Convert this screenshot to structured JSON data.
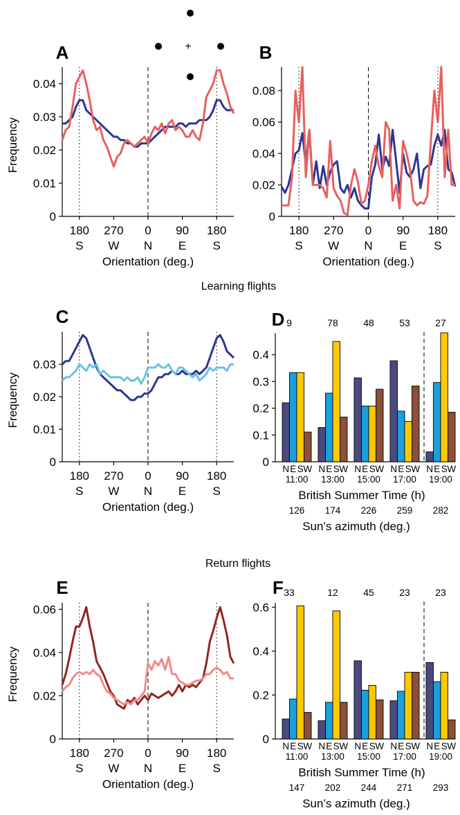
{
  "section_titles": {
    "learning": "Learning flights",
    "return": "Return flights"
  },
  "colors": {
    "navy": "#2B3595",
    "salmon": "#E8605C",
    "light_blue": "#6BC3DE",
    "dark_red": "#92251F",
    "pink": "#F08A8A",
    "bar_N": "#4A4A80",
    "bar_E": "#1AA0DC",
    "bar_S": "#FFC800",
    "bar_W": "#8B5038"
  },
  "orientation_axis": {
    "xlabel": "Orientation (deg.)",
    "ticks": [
      {
        "value": 180,
        "deg": "180",
        "dir": "S"
      },
      {
        "value": 270,
        "deg": "270",
        "dir": "W"
      },
      {
        "value": 360,
        "deg": "0",
        "dir": "N"
      },
      {
        "value": 450,
        "deg": "90",
        "dir": "E"
      },
      {
        "value": 540,
        "deg": "180",
        "dir": "S"
      }
    ]
  },
  "stimulus_icon": {
    "center_mark": "+"
  },
  "chart_data": [
    {
      "panel": "A",
      "type": "line",
      "ylabel": "Frequency",
      "xlim": [
        135,
        585
      ],
      "ylim": [
        0,
        0.045
      ],
      "yticks": [
        0,
        0.01,
        0.02,
        0.03,
        0.04
      ],
      "ytick_labels": [
        "0",
        "0.01",
        "0.02",
        "0.03",
        "0.04"
      ],
      "vlines": {
        "dotted": [
          180,
          540
        ],
        "dashed": [
          360
        ]
      },
      "x": [
        135,
        144,
        153,
        162,
        171,
        180,
        189,
        198,
        207,
        216,
        225,
        234,
        243,
        252,
        261,
        270,
        279,
        288,
        297,
        306,
        315,
        324,
        333,
        342,
        351,
        360,
        369,
        378,
        387,
        396,
        405,
        414,
        423,
        432,
        441,
        450,
        459,
        468,
        477,
        486,
        495,
        504,
        513,
        522,
        531,
        540,
        549,
        558,
        567,
        576,
        585
      ],
      "series": [
        {
          "color": "#2B3595",
          "values": [
            0.028,
            0.028,
            0.029,
            0.03,
            0.033,
            0.035,
            0.035,
            0.032,
            0.031,
            0.03,
            0.029,
            0.028,
            0.027,
            0.026,
            0.025,
            0.024,
            0.024,
            0.023,
            0.023,
            0.022,
            0.022,
            0.021,
            0.021,
            0.022,
            0.022,
            0.022,
            0.023,
            0.024,
            0.025,
            0.026,
            0.027,
            0.027,
            0.027,
            0.027,
            0.028,
            0.028,
            0.027,
            0.028,
            0.028,
            0.028,
            0.029,
            0.029,
            0.029,
            0.03,
            0.032,
            0.035,
            0.035,
            0.033,
            0.032,
            0.032,
            0.032
          ]
        },
        {
          "color": "#E8605C",
          "values": [
            0.023,
            0.026,
            0.027,
            0.033,
            0.04,
            0.042,
            0.044,
            0.04,
            0.035,
            0.029,
            0.026,
            0.027,
            0.023,
            0.021,
            0.018,
            0.015,
            0.018,
            0.019,
            0.022,
            0.023,
            0.022,
            0.021,
            0.022,
            0.023,
            0.024,
            0.022,
            0.025,
            0.027,
            0.026,
            0.028,
            0.025,
            0.028,
            0.029,
            0.026,
            0.027,
            0.026,
            0.024,
            0.024,
            0.026,
            0.024,
            0.023,
            0.028,
            0.036,
            0.038,
            0.04,
            0.044,
            0.044,
            0.04,
            0.037,
            0.033,
            0.031
          ]
        }
      ]
    },
    {
      "panel": "B",
      "type": "line",
      "ylabel": "",
      "xlim": [
        135,
        585
      ],
      "ylim": [
        0,
        0.095
      ],
      "yticks": [
        0,
        0.02,
        0.04,
        0.06,
        0.08
      ],
      "ytick_labels": [
        "0",
        "0.02",
        "0.04",
        "0.06",
        "0.08"
      ],
      "vlines": {
        "dotted": [
          180,
          540
        ],
        "dashed": [
          360
        ]
      },
      "x": [
        135,
        144,
        153,
        162,
        171,
        180,
        189,
        198,
        207,
        216,
        225,
        234,
        243,
        252,
        261,
        270,
        279,
        288,
        297,
        306,
        315,
        324,
        333,
        342,
        351,
        360,
        369,
        378,
        387,
        396,
        405,
        414,
        423,
        432,
        441,
        450,
        459,
        468,
        477,
        486,
        495,
        504,
        513,
        522,
        531,
        540,
        549,
        558,
        567,
        576,
        585
      ],
      "series": [
        {
          "color": "#2B3595",
          "values": [
            0.019,
            0.015,
            0.02,
            0.03,
            0.04,
            0.042,
            0.053,
            0.033,
            0.055,
            0.02,
            0.035,
            0.018,
            0.032,
            0.02,
            0.028,
            0.033,
            0.035,
            0.018,
            0.015,
            0.02,
            0.012,
            0.018,
            0.01,
            0.007,
            0.005,
            0.005,
            0.025,
            0.033,
            0.052,
            0.03,
            0.038,
            0.032,
            0.055,
            0.035,
            0.015,
            0.04,
            0.028,
            0.025,
            0.03,
            0.04,
            0.018,
            0.03,
            0.032,
            0.033,
            0.045,
            0.052,
            0.045,
            0.055,
            0.03,
            0.028,
            0.019
          ]
        },
        {
          "color": "#E8605C",
          "values": [
            0.007,
            0.007,
            0.007,
            0.025,
            0.08,
            0.06,
            0.095,
            0.025,
            0.055,
            0.02,
            0.02,
            0.02,
            0.018,
            0.012,
            0.048,
            0.018,
            0.013,
            0.01,
            0.002,
            0.001,
            0.02,
            0.03,
            0.022,
            0.008,
            0.01,
            0.02,
            0.035,
            0.045,
            0.032,
            0.025,
            0.06,
            0.055,
            0.01,
            0.02,
            0.005,
            0.048,
            0.04,
            0.03,
            0.01,
            0.007,
            0.009,
            0.008,
            0.013,
            0.048,
            0.08,
            0.06,
            0.095,
            0.025,
            0.055,
            0.02,
            0.02
          ]
        }
      ]
    },
    {
      "panel": "C",
      "type": "line",
      "ylabel": "Frequency",
      "xlim": [
        135,
        585
      ],
      "ylim": [
        0,
        0.04
      ],
      "yticks": [
        0,
        0.01,
        0.02,
        0.03
      ],
      "ytick_labels": [
        "0",
        "0.01",
        "0.02",
        "0.03"
      ],
      "vlines": {
        "dotted": [
          180,
          540
        ],
        "dashed": [
          360
        ]
      },
      "x": [
        135,
        144,
        153,
        162,
        171,
        180,
        189,
        198,
        207,
        216,
        225,
        234,
        243,
        252,
        261,
        270,
        279,
        288,
        297,
        306,
        315,
        324,
        333,
        342,
        351,
        360,
        369,
        378,
        387,
        396,
        405,
        414,
        423,
        432,
        441,
        450,
        459,
        468,
        477,
        486,
        495,
        504,
        513,
        522,
        531,
        540,
        549,
        558,
        567,
        576,
        585
      ],
      "series": [
        {
          "color": "#2B3595",
          "values": [
            0.03,
            0.031,
            0.031,
            0.033,
            0.035,
            0.037,
            0.039,
            0.038,
            0.035,
            0.032,
            0.029,
            0.027,
            0.026,
            0.025,
            0.024,
            0.023,
            0.022,
            0.022,
            0.021,
            0.02,
            0.019,
            0.019,
            0.02,
            0.02,
            0.021,
            0.021,
            0.022,
            0.024,
            0.026,
            0.026,
            0.027,
            0.027,
            0.028,
            0.027,
            0.027,
            0.028,
            0.027,
            0.027,
            0.027,
            0.028,
            0.027,
            0.028,
            0.029,
            0.032,
            0.035,
            0.038,
            0.039,
            0.037,
            0.034,
            0.033,
            0.032
          ]
        },
        {
          "color": "#6BC3DE",
          "values": [
            0.025,
            0.026,
            0.026,
            0.027,
            0.028,
            0.03,
            0.029,
            0.028,
            0.03,
            0.029,
            0.03,
            0.027,
            0.028,
            0.027,
            0.026,
            0.026,
            0.026,
            0.026,
            0.025,
            0.026,
            0.025,
            0.025,
            0.026,
            0.024,
            0.026,
            0.029,
            0.029,
            0.029,
            0.03,
            0.029,
            0.029,
            0.03,
            0.028,
            0.027,
            0.029,
            0.029,
            0.028,
            0.027,
            0.026,
            0.027,
            0.025,
            0.026,
            0.027,
            0.029,
            0.028,
            0.029,
            0.029,
            0.029,
            0.028,
            0.03,
            0.03
          ]
        }
      ]
    },
    {
      "panel": "D",
      "type": "bar",
      "ylim": [
        0,
        0.48
      ],
      "yticks": [
        0,
        0.1,
        0.2,
        0.3,
        0.4
      ],
      "ytick_labels": [
        "0",
        "0.1",
        "0.2",
        "0.3",
        "0.4"
      ],
      "bar_letters": [
        "N",
        "E",
        "S",
        "W"
      ],
      "time_label": "British Summer Time (h)",
      "azimuth_label": "Sun’s azimuth (deg.)",
      "groups": [
        {
          "time": "11:00",
          "azimuth": "126",
          "count": "9",
          "values": [
            0.22,
            0.333,
            0.333,
            0.111
          ]
        },
        {
          "time": "13:00",
          "azimuth": "174",
          "count": "78",
          "values": [
            0.128,
            0.256,
            0.449,
            0.167
          ]
        },
        {
          "time": "15:00",
          "azimuth": "226",
          "count": "48",
          "values": [
            0.313,
            0.208,
            0.208,
            0.271
          ]
        },
        {
          "time": "17:00",
          "azimuth": "259",
          "count": "53",
          "values": [
            0.377,
            0.189,
            0.151,
            0.283
          ]
        },
        {
          "time": "19:00",
          "azimuth": "282",
          "count": "27",
          "values": [
            0.037,
            0.296,
            0.481,
            0.185
          ]
        }
      ]
    },
    {
      "panel": "E",
      "type": "line",
      "ylabel": "Frequency",
      "xlim": [
        135,
        585
      ],
      "ylim": [
        0,
        0.063
      ],
      "yticks": [
        0,
        0.02,
        0.04,
        0.06
      ],
      "ytick_labels": [
        "0",
        "0.02",
        "0.04",
        "0.06"
      ],
      "vlines": {
        "dotted": [
          180,
          540
        ],
        "dashed": [
          360
        ]
      },
      "x": [
        135,
        144,
        153,
        162,
        171,
        180,
        189,
        198,
        207,
        216,
        225,
        234,
        243,
        252,
        261,
        270,
        279,
        288,
        297,
        306,
        315,
        324,
        333,
        342,
        351,
        360,
        369,
        378,
        387,
        396,
        405,
        414,
        423,
        432,
        441,
        450,
        459,
        468,
        477,
        486,
        495,
        504,
        513,
        522,
        531,
        540,
        549,
        558,
        567,
        576,
        585
      ],
      "series": [
        {
          "color": "#92251F",
          "values": [
            0.025,
            0.03,
            0.037,
            0.045,
            0.052,
            0.052,
            0.056,
            0.061,
            0.052,
            0.045,
            0.036,
            0.033,
            0.03,
            0.026,
            0.022,
            0.02,
            0.016,
            0.015,
            0.014,
            0.018,
            0.017,
            0.019,
            0.016,
            0.018,
            0.02,
            0.018,
            0.021,
            0.02,
            0.019,
            0.02,
            0.021,
            0.022,
            0.02,
            0.022,
            0.025,
            0.022,
            0.025,
            0.024,
            0.025,
            0.024,
            0.026,
            0.028,
            0.035,
            0.045,
            0.05,
            0.056,
            0.061,
            0.055,
            0.048,
            0.038,
            0.035
          ]
        },
        {
          "color": "#F08A8A",
          "values": [
            0.022,
            0.024,
            0.025,
            0.028,
            0.03,
            0.031,
            0.03,
            0.031,
            0.03,
            0.032,
            0.03,
            0.029,
            0.025,
            0.022,
            0.021,
            0.019,
            0.018,
            0.017,
            0.016,
            0.017,
            0.016,
            0.018,
            0.018,
            0.02,
            0.022,
            0.035,
            0.032,
            0.036,
            0.034,
            0.037,
            0.032,
            0.038,
            0.03,
            0.03,
            0.027,
            0.026,
            0.025,
            0.025,
            0.026,
            0.027,
            0.027,
            0.028,
            0.03,
            0.03,
            0.032,
            0.033,
            0.032,
            0.03,
            0.031,
            0.028,
            0.028
          ]
        }
      ]
    },
    {
      "panel": "F",
      "type": "bar",
      "ylim": [
        0,
        0.62
      ],
      "yticks": [
        0,
        0.2,
        0.4,
        0.6
      ],
      "ytick_labels": [
        "0",
        "0.2",
        "0.4",
        "0.6"
      ],
      "bar_letters": [
        "N",
        "E",
        "S",
        "W"
      ],
      "time_label": "British Summer Time (h)",
      "azimuth_label": "Sun’s azimuth (deg.)",
      "groups": [
        {
          "time": "11:00",
          "azimuth": "147",
          "count": "33",
          "values": [
            0.091,
            0.182,
            0.606,
            0.121
          ]
        },
        {
          "time": "13:00",
          "azimuth": "202",
          "count": "12",
          "values": [
            0.083,
            0.167,
            0.583,
            0.167
          ]
        },
        {
          "time": "15:00",
          "azimuth": "244",
          "count": "45",
          "values": [
            0.356,
            0.222,
            0.244,
            0.178
          ]
        },
        {
          "time": "17:00",
          "azimuth": "271",
          "count": "23",
          "values": [
            0.174,
            0.217,
            0.304,
            0.304
          ]
        },
        {
          "time": "19:00",
          "azimuth": "293",
          "count": "23",
          "values": [
            0.348,
            0.261,
            0.304,
            0.087
          ]
        }
      ]
    }
  ]
}
